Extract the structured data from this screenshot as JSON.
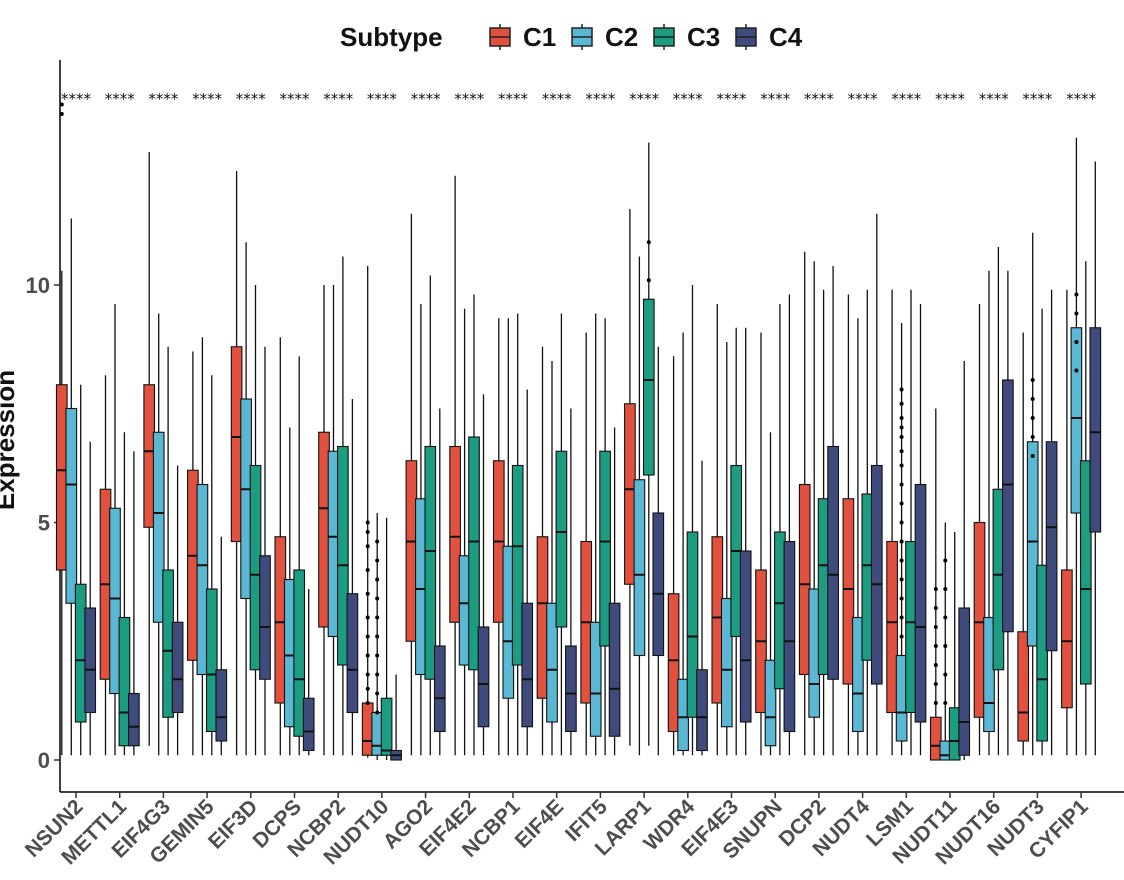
{
  "chart_data": {
    "type": "boxplot",
    "title": "",
    "xlabel": "",
    "ylabel": "Expression",
    "ylim": [
      -0.7,
      14.5
    ],
    "yticks": [
      0,
      5,
      10
    ],
    "legend": {
      "title": "Subtype",
      "position": "top"
    },
    "categories": [
      "NSUN2",
      "METTL1",
      "EIF4G3",
      "GEMIN5",
      "EIF3D",
      "DCPS",
      "NCBP2",
      "NUDT10",
      "AGO2",
      "EIF4E2",
      "NCBP1",
      "EIF4E",
      "IFIT5",
      "LARP1",
      "WDR4",
      "EIF4E3",
      "SNUPN",
      "DCP2",
      "NUDT4",
      "LSM1",
      "NUDT11",
      "NUDT16",
      "NUDT3",
      "CYFIP1"
    ],
    "significance": [
      "****",
      "****",
      "****",
      "****",
      "****",
      "****",
      "****",
      "****",
      "****",
      "****",
      "****",
      "****",
      "****",
      "****",
      "****",
      "****",
      "****",
      "****",
      "****",
      "****",
      "****",
      "****",
      "****",
      "****"
    ],
    "series": [
      {
        "name": "C1",
        "color": "#E1513D",
        "boxes": [
          [
            0.1,
            4.0,
            6.1,
            7.9,
            10.3
          ],
          [
            0.1,
            1.7,
            3.7,
            5.7,
            8.1
          ],
          [
            0.3,
            4.9,
            6.5,
            7.9,
            12.8
          ],
          [
            0.1,
            2.1,
            4.3,
            6.1,
            8.6
          ],
          [
            0.1,
            4.6,
            6.8,
            8.7,
            12.4
          ],
          [
            0.1,
            1.2,
            2.9,
            4.7,
            8.9
          ],
          [
            0.1,
            2.8,
            5.3,
            6.9,
            10.0
          ],
          [
            0.05,
            0.1,
            0.4,
            1.2,
            10.4
          ],
          [
            0.1,
            2.5,
            4.6,
            6.3,
            11.5
          ],
          [
            0.1,
            2.9,
            4.7,
            6.6,
            12.3
          ],
          [
            0.1,
            2.9,
            4.6,
            6.3,
            9.3
          ],
          [
            0.1,
            1.3,
            3.3,
            4.7,
            8.7
          ],
          [
            0.1,
            1.2,
            2.9,
            4.6,
            9.0
          ],
          [
            0.3,
            3.7,
            5.7,
            7.5,
            11.6
          ],
          [
            0.1,
            0.6,
            2.1,
            3.5,
            8.5
          ],
          [
            0.1,
            1.2,
            3.0,
            4.7,
            9.6
          ],
          [
            0.1,
            1.0,
            2.5,
            4.0,
            9.0
          ],
          [
            0.1,
            1.8,
            3.7,
            5.8,
            10.7
          ],
          [
            0.1,
            1.6,
            3.6,
            5.5,
            9.8
          ],
          [
            0.1,
            1.0,
            2.9,
            4.6,
            9.9
          ],
          [
            0.0,
            0.0,
            0.3,
            0.9,
            7.4
          ],
          [
            0.1,
            0.9,
            2.9,
            5.0,
            9.6
          ],
          [
            0.1,
            0.4,
            1.0,
            2.7,
            9.0
          ],
          [
            0.1,
            1.1,
            2.5,
            4.0,
            9.9
          ]
        ],
        "outliers": [
          [
            13.6,
            13.8
          ],
          [],
          [],
          [],
          [],
          [],
          [],
          [
            5.0,
            4.8,
            4.5,
            4.0,
            3.5,
            3.0,
            2.6,
            2.2,
            1.8,
            1.5,
            1.2
          ],
          [],
          [],
          [],
          [],
          [],
          [],
          [],
          [],
          [],
          [],
          [],
          [],
          [
            3.6,
            3.2,
            2.8,
            2.4,
            2.0,
            1.6,
            1.2
          ],
          [],
          [],
          []
        ]
      },
      {
        "name": "C2",
        "color": "#5BB8D4",
        "boxes": [
          [
            0.1,
            3.3,
            5.8,
            7.4,
            11.4
          ],
          [
            0.1,
            1.4,
            3.4,
            5.3,
            9.6
          ],
          [
            0.1,
            2.9,
            5.2,
            6.9,
            9.4
          ],
          [
            0.1,
            1.8,
            4.1,
            5.8,
            8.9
          ],
          [
            0.1,
            3.4,
            5.7,
            7.6,
            10.9
          ],
          [
            0.1,
            0.7,
            2.2,
            3.8,
            7.0
          ],
          [
            0.1,
            2.6,
            4.7,
            6.5,
            10.0
          ],
          [
            0.0,
            0.1,
            0.3,
            1.0,
            5.2
          ],
          [
            0.1,
            1.8,
            3.6,
            5.5,
            9.6
          ],
          [
            0.1,
            2.0,
            3.3,
            4.3,
            9.5
          ],
          [
            0.1,
            1.3,
            2.5,
            4.5,
            9.3
          ],
          [
            0.1,
            0.8,
            1.9,
            3.3,
            8.4
          ],
          [
            0.1,
            0.5,
            1.4,
            2.9,
            9.4
          ],
          [
            0.1,
            2.2,
            3.9,
            5.9,
            10.6
          ],
          [
            0.1,
            0.2,
            0.9,
            1.7,
            9.0
          ],
          [
            0.1,
            0.7,
            1.9,
            3.4,
            8.8
          ],
          [
            0.1,
            0.3,
            0.9,
            2.1,
            6.9
          ],
          [
            0.1,
            0.9,
            1.6,
            3.6,
            10.5
          ],
          [
            0.1,
            0.6,
            1.4,
            3.0,
            9.3
          ],
          [
            0.1,
            0.4,
            1.0,
            2.2,
            9.2
          ],
          [
            0.0,
            0.0,
            0.1,
            0.4,
            5.0
          ],
          [
            0.1,
            0.6,
            1.2,
            3.0,
            10.3
          ],
          [
            0.1,
            2.4,
            4.6,
            6.7,
            11.1
          ],
          [
            0.1,
            5.2,
            7.2,
            9.1,
            13.1
          ]
        ],
        "outliers": [
          [],
          [],
          [],
          [],
          [],
          [],
          [],
          [
            4.6,
            4.2,
            3.8,
            3.4,
            3.0,
            2.6,
            2.2,
            1.8,
            1.4,
            1.0
          ],
          [],
          [],
          [],
          [],
          [],
          [],
          [],
          [],
          [],
          [],
          [],
          [
            7.8,
            7.5,
            7.2,
            7.0,
            6.8,
            6.5,
            6.2,
            5.8,
            5.4,
            5.0,
            4.6,
            4.2,
            3.8,
            3.4,
            3.0,
            2.6
          ],
          [
            4.2,
            3.6,
            3.0,
            2.4,
            1.8,
            1.2
          ],
          [],
          [
            8.0,
            7.6,
            7.2,
            6.8,
            6.4
          ],
          [
            9.8,
            9.4,
            8.8,
            8.2
          ]
        ]
      },
      {
        "name": "C3",
        "color": "#1C9C80",
        "boxes": [
          [
            0.1,
            0.8,
            2.1,
            3.7,
            7.9
          ],
          [
            0.1,
            0.3,
            1.0,
            3.0,
            6.9
          ],
          [
            0.1,
            0.9,
            2.3,
            4.0,
            8.7
          ],
          [
            0.1,
            0.6,
            1.8,
            3.6,
            8.1
          ],
          [
            0.1,
            1.9,
            3.9,
            6.2,
            10.0
          ],
          [
            0.1,
            0.5,
            1.7,
            4.0,
            8.5
          ],
          [
            0.1,
            2.0,
            4.1,
            6.6,
            10.6
          ],
          [
            0.0,
            0.1,
            0.2,
            1.3,
            5.1
          ],
          [
            0.1,
            1.7,
            4.4,
            6.6,
            10.2
          ],
          [
            0.1,
            1.9,
            4.6,
            6.8,
            9.8
          ],
          [
            0.1,
            2.0,
            4.5,
            6.2,
            9.4
          ],
          [
            0.1,
            2.8,
            4.8,
            6.5,
            9.4
          ],
          [
            0.1,
            2.4,
            4.6,
            6.5,
            9.3
          ],
          [
            0.3,
            6.0,
            8.0,
            9.7,
            13.0
          ],
          [
            0.1,
            0.9,
            2.6,
            4.8,
            10.0
          ],
          [
            0.1,
            2.6,
            4.4,
            6.2,
            9.1
          ],
          [
            0.1,
            1.5,
            3.3,
            4.8,
            9.6
          ],
          [
            0.1,
            1.8,
            4.1,
            5.5,
            9.9
          ],
          [
            0.1,
            2.1,
            4.1,
            5.6,
            9.9
          ],
          [
            0.1,
            1.0,
            2.9,
            4.6,
            9.9
          ],
          [
            0.0,
            0.0,
            0.4,
            1.1,
            4.8
          ],
          [
            0.1,
            1.9,
            3.9,
            5.7,
            10.8
          ],
          [
            0.1,
            0.4,
            1.7,
            4.1,
            9.5
          ],
          [
            0.1,
            1.6,
            3.6,
            6.3,
            10.5
          ]
        ],
        "outliers": [
          [],
          [],
          [],
          [],
          [],
          [],
          [],
          [],
          [],
          [],
          [],
          [],
          [],
          [
            10.9,
            10.1
          ],
          [],
          [],
          [],
          [],
          [],
          [],
          [],
          [],
          [],
          []
        ]
      },
      {
        "name": "C4",
        "color": "#3F4B7C",
        "boxes": [
          [
            0.1,
            1.0,
            1.9,
            3.2,
            6.7
          ],
          [
            0.1,
            0.3,
            0.7,
            1.4,
            6.5
          ],
          [
            0.1,
            1.0,
            1.7,
            2.9,
            6.2
          ],
          [
            0.1,
            0.4,
            0.9,
            1.9,
            4.7
          ],
          [
            0.1,
            1.7,
            2.8,
            4.3,
            8.7
          ],
          [
            0.1,
            0.2,
            0.6,
            1.3,
            3.6
          ],
          [
            0.1,
            1.0,
            1.9,
            3.5,
            7.6
          ],
          [
            0.0,
            0.0,
            0.1,
            0.2,
            1.8
          ],
          [
            0.1,
            0.6,
            1.3,
            2.4,
            7.4
          ],
          [
            0.1,
            0.7,
            1.6,
            2.8,
            7.7
          ],
          [
            0.1,
            0.7,
            1.7,
            3.3,
            7.8
          ],
          [
            0.1,
            0.6,
            1.4,
            2.4,
            7.4
          ],
          [
            0.1,
            0.5,
            1.5,
            3.3,
            7.0
          ],
          [
            0.1,
            2.2,
            3.5,
            5.2,
            8.7
          ],
          [
            0.1,
            0.2,
            0.9,
            1.9,
            6.3
          ],
          [
            0.1,
            0.8,
            2.1,
            4.4,
            9.1
          ],
          [
            0.1,
            0.6,
            2.5,
            4.6,
            9.8
          ],
          [
            0.1,
            1.7,
            3.9,
            6.6,
            10.4
          ],
          [
            0.1,
            1.6,
            3.7,
            6.2,
            11.5
          ],
          [
            0.1,
            0.8,
            2.8,
            5.8,
            9.6
          ],
          [
            0.0,
            0.1,
            0.8,
            3.2,
            8.4
          ],
          [
            0.1,
            2.7,
            5.8,
            8.0,
            10.3
          ],
          [
            0.1,
            2.3,
            4.9,
            6.7,
            9.9
          ],
          [
            0.1,
            4.8,
            6.9,
            9.1,
            12.6
          ]
        ],
        "outliers": [
          [],
          [],
          [],
          [],
          [],
          [],
          [],
          [],
          [],
          [],
          [],
          [],
          [],
          [],
          [],
          [],
          [],
          [],
          [],
          [],
          [],
          [],
          [],
          []
        ]
      }
    ]
  }
}
